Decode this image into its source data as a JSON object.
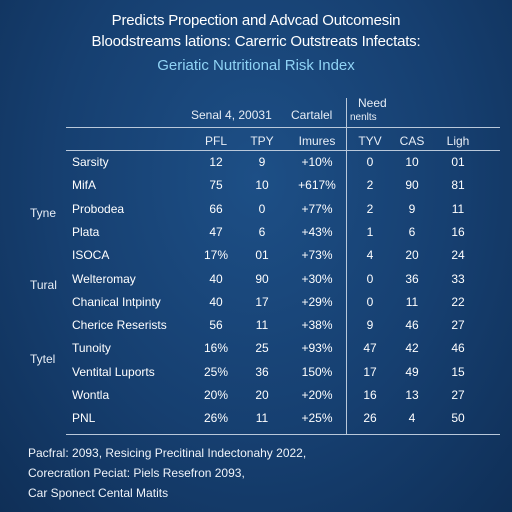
{
  "header": {
    "title_line1": "Predicts Propection and Advcad Outcomesin",
    "title_line2": "Bloodstreams lations: Carerric Outstreats Infectats:",
    "subtitle": "Geriatic Nutritional Risk Index"
  },
  "table": {
    "group_header_1": "Senal 4, 20031",
    "group_header_2": "Cartalel",
    "group_header_3_line1": "Need",
    "group_header_3_line2": "nenlts",
    "columns": [
      "PFL",
      "TPY",
      "Imures",
      "TYV",
      "CAS",
      "Ligh"
    ],
    "groups": [
      "Tyne",
      "Tural",
      "Tytel"
    ],
    "rows": [
      {
        "name": "Sarsity",
        "values": [
          "12",
          "9",
          "+10%",
          "0",
          "10",
          "01"
        ]
      },
      {
        "name": "MifA",
        "values": [
          "75",
          "10",
          "+617%",
          "2",
          "90",
          "81"
        ]
      },
      {
        "name": "Probodea",
        "values": [
          "66",
          "0",
          "+77%",
          "2",
          "9",
          "11"
        ]
      },
      {
        "name": "Plata",
        "values": [
          "47",
          "6",
          "+43%",
          "1",
          "6",
          "16"
        ]
      },
      {
        "name": "ISOCA",
        "values": [
          "17%",
          "01",
          "+73%",
          "4",
          "20",
          "24"
        ]
      },
      {
        "name": "Welteromay",
        "values": [
          "40",
          "90",
          "+30%",
          "0",
          "36",
          "33"
        ]
      },
      {
        "name": "Chanical Intpinty",
        "values": [
          "40",
          "17",
          "+29%",
          "0",
          "11",
          "22"
        ]
      },
      {
        "name": "Cherice Reserists",
        "values": [
          "56",
          "11",
          "+38%",
          "9",
          "46",
          "27"
        ]
      },
      {
        "name": "Tunoity",
        "values": [
          "16%",
          "25",
          "+93%",
          "47",
          "42",
          "46"
        ]
      },
      {
        "name": "Ventital Luports",
        "values": [
          "25%",
          "36",
          "150%",
          "17",
          "49",
          "15"
        ]
      },
      {
        "name": "Wontla",
        "values": [
          "20%",
          "20",
          "+20%",
          "16",
          "13",
          "27"
        ]
      },
      {
        "name": "PNL",
        "values": [
          "26%",
          "11",
          "+25%",
          "26",
          "4",
          "50"
        ]
      }
    ]
  },
  "footer": {
    "line1": "Pacfral: 2093, Resicing Precitinal Indectonahy 2022,",
    "line2": "Corecration Peciat: Piels Resefron 2093,",
    "line3": "Car Sponect Cental Matits"
  }
}
